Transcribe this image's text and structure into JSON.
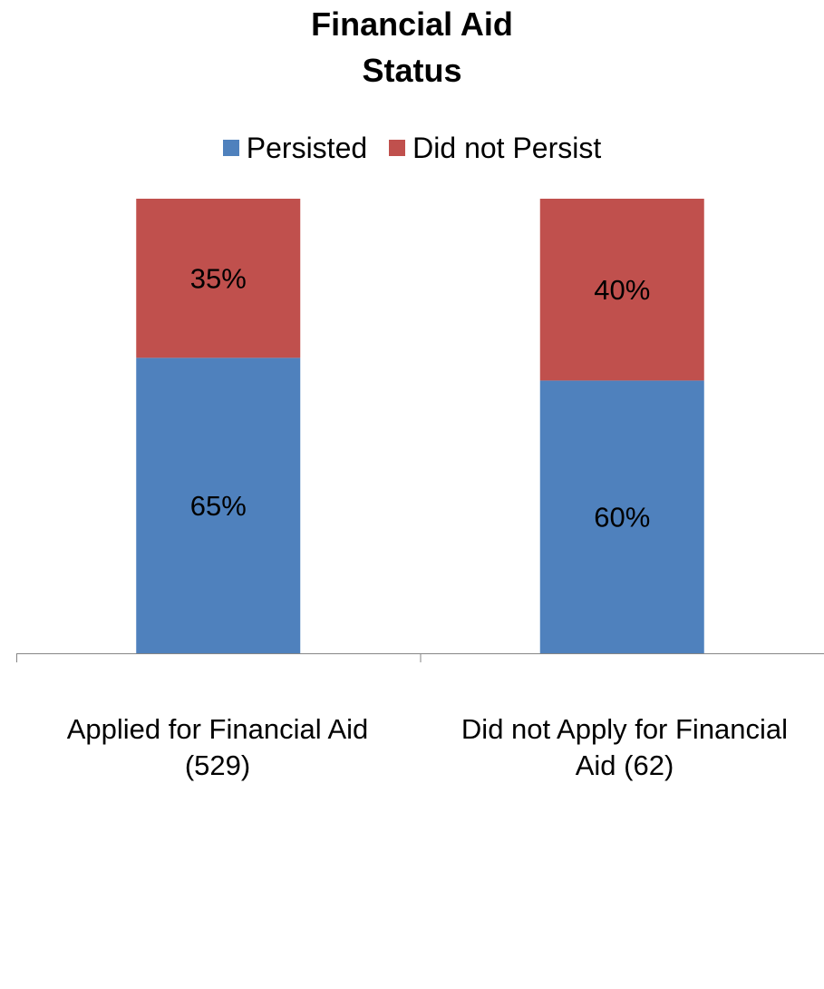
{
  "chart_data": {
    "type": "bar",
    "stacked": true,
    "percent": true,
    "title_lines": [
      "Financial Aid",
      "Status"
    ],
    "categories": [
      "Applied for Financial Aid (529)",
      "Did not Apply for Financial Aid (62)"
    ],
    "category_label_lines": [
      [
        "Applied for Financial Aid",
        "(529)"
      ],
      [
        "Did not Apply for Financial",
        "Aid (62)"
      ]
    ],
    "series": [
      {
        "name": "Persisted",
        "values": [
          65,
          60
        ],
        "labels": [
          "65%",
          "60%"
        ],
        "color": "#4F81BD"
      },
      {
        "name": "Did not Persist",
        "values": [
          35,
          40
        ],
        "labels": [
          "35%",
          "40%"
        ],
        "color": "#C0504D"
      }
    ],
    "ylim": [
      0,
      100
    ],
    "legend_position": "top",
    "grid": false
  }
}
